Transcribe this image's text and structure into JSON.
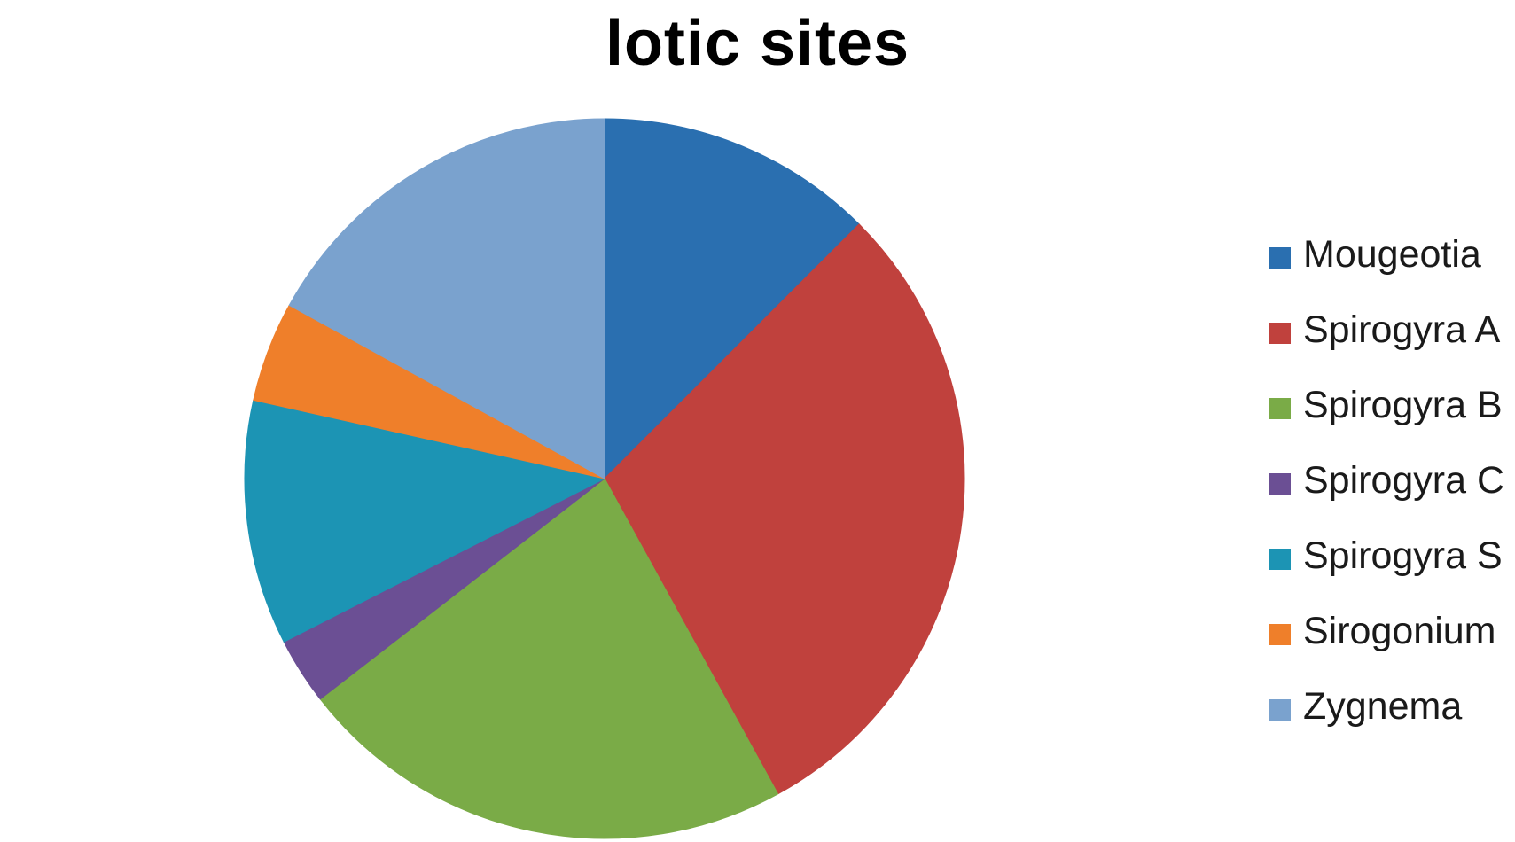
{
  "chart_data": {
    "type": "pie",
    "title": "lotic sites",
    "legend_position": "right",
    "start_angle_deg": 0,
    "direction": "clockwise",
    "slices": [
      {
        "label": "Mougeotia",
        "value": 12.5,
        "color": "#2a6fb0"
      },
      {
        "label": "Spirogyra A",
        "value": 29.5,
        "color": "#c0413d"
      },
      {
        "label": "Spirogyra B",
        "value": 22.5,
        "color": "#7aab47"
      },
      {
        "label": "Spirogyra C",
        "value": 3.0,
        "color": "#6b4f94"
      },
      {
        "label": "Spirogyra S",
        "value": 11.0,
        "color": "#1c94b4"
      },
      {
        "label": "Sirogonium",
        "value": 4.5,
        "color": "#ef7f2a"
      },
      {
        "label": "Zygnema",
        "value": 17.0,
        "color": "#7aa2ce"
      }
    ]
  }
}
